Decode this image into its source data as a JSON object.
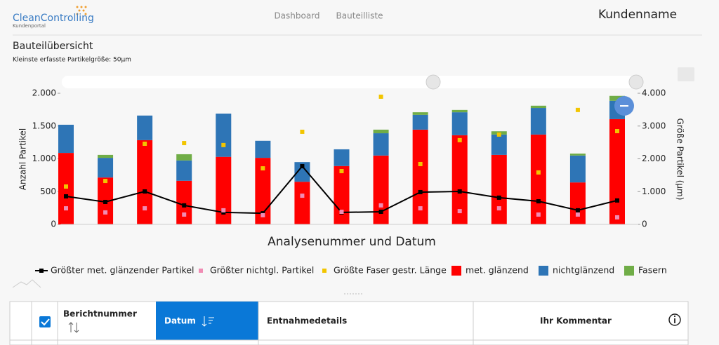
{
  "header": {
    "logo": "CleanControlling",
    "logo_sub": "Kundenportal",
    "nav": [
      "Dashboard",
      "Bauteilliste"
    ],
    "customer": "Kundenname"
  },
  "section": {
    "title": "Bauteilübersicht",
    "subtitle": "Kleinste erfasste Partikelgröße: 50µm"
  },
  "chart_data": {
    "type": "bar",
    "stacked": true,
    "x_label": "Analysenummer und Datum",
    "y_label": "Anzahl Partikel",
    "y2_label": "Größe Partikel (µm)",
    "categories": [
      null,
      null,
      null,
      null,
      null,
      null,
      null,
      null,
      null,
      null,
      null,
      null,
      null,
      null,
      null
    ],
    "ylim": [
      0,
      2000
    ],
    "yticks": [
      0,
      500,
      {
        "value": 1000,
        "label": "1.000"
      },
      {
        "value": 1500,
        "label": "1.500"
      },
      {
        "value": 2000,
        "label": "2.000"
      }
    ],
    "y2lim": [
      0,
      4000
    ],
    "y2ticks": [
      0,
      {
        "value": 1000,
        "label": "1.000"
      },
      {
        "value": 2000,
        "label": "2.000"
      },
      {
        "value": 3000,
        "label": "3.000"
      },
      {
        "value": 4000,
        "label": "4.000"
      }
    ],
    "legend": "bottom",
    "series": [
      {
        "name": "Größter met. glänzender Partikel",
        "type": "line",
        "axis": "y2",
        "color": "#000000",
        "values": [
          855,
          685,
          1005,
          580,
          365,
          340,
          1775,
          365,
          385,
          985,
          1005,
          815,
          705,
          430,
          730
        ]
      },
      {
        "name": "Größter nichtgl. Partikel",
        "type": "scatter",
        "axis": "y2",
        "color": "#f08cb4",
        "values": [
          490,
          365,
          490,
          300,
          430,
          280,
          875,
          385,
          580,
          490,
          405,
          490,
          300,
          300,
          215
        ]
      },
      {
        "name": "Größte Faser gestr. Länge",
        "type": "scatter",
        "axis": "y2",
        "color": "#f2c500",
        "values": [
          1155,
          1325,
          2460,
          2480,
          2420,
          1710,
          2825,
          1625,
          3895,
          1840,
          2570,
          2740,
          1585,
          3490,
          2845
        ]
      },
      {
        "name": "met. glänzend",
        "type": "bar",
        "color": "#ff0000",
        "values": [
          1090,
          715,
          1285,
          665,
          1030,
          1015,
          650,
          890,
          1050,
          1445,
          1360,
          1060,
          1370,
          640,
          1605
        ]
      },
      {
        "name": "nichtglänzend",
        "type": "bar",
        "color": "#2e75b6",
        "values": [
          430,
          300,
          375,
          310,
          660,
          260,
          300,
          255,
          340,
          225,
          350,
          310,
          405,
          410,
          280
        ]
      },
      {
        "name": "Fasern",
        "type": "bar",
        "color": "#70ad47",
        "values": [
          0,
          45,
          0,
          95,
          0,
          0,
          0,
          0,
          55,
          40,
          35,
          50,
          35,
          30,
          75
        ]
      }
    ]
  },
  "table": {
    "headers": [
      "Berichtnummer",
      "Datum",
      "Entnahmedetails",
      "Ihr Kommentar"
    ]
  }
}
